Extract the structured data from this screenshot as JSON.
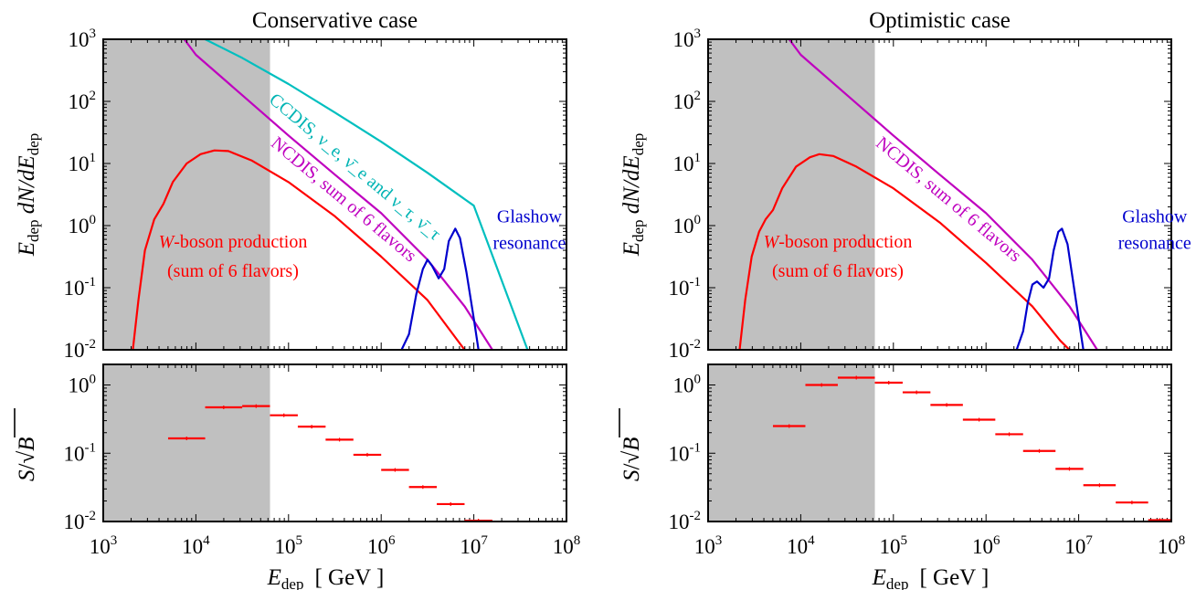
{
  "panels": [
    {
      "title": "Conservative case",
      "shade_max": 4.8,
      "top": {
        "ylabel_main": "E",
        "ylabel_sub1": "dep",
        "ylabel_mid": " dN/dE",
        "ylabel_sub2": "dep",
        "curves": [
          {
            "key": "ccdis",
            "color": "#00bfbf",
            "points": [
              [
                4.1,
                3.0
              ],
              [
                4.5,
                2.7
              ],
              [
                5,
                2.28
              ],
              [
                5.5,
                1.82
              ],
              [
                6,
                1.35
              ],
              [
                6.5,
                0.85
              ],
              [
                7,
                0.32
              ],
              [
                7.58,
                -2.0
              ]
            ]
          },
          {
            "key": "ncdis",
            "color": "#bf00bf",
            "points": [
              [
                3.8,
                3.15
              ],
              [
                4,
                2.75
              ],
              [
                4.5,
                2.1
              ],
              [
                5,
                1.45
              ],
              [
                5.5,
                0.82
              ],
              [
                6,
                0.2
              ],
              [
                6.5,
                -0.55
              ],
              [
                6.9,
                -1.3
              ],
              [
                7.2,
                -2.0
              ]
            ]
          },
          {
            "key": "wboson",
            "color": "#ff0000",
            "points": [
              [
                3.32,
                -2.0
              ],
              [
                3.38,
                -1.2
              ],
              [
                3.45,
                -0.4
              ],
              [
                3.55,
                0.1
              ],
              [
                3.65,
                0.35
              ],
              [
                3.75,
                0.7
              ],
              [
                3.9,
                1.0
              ],
              [
                4.05,
                1.15
              ],
              [
                4.2,
                1.21
              ],
              [
                4.35,
                1.2
              ],
              [
                4.6,
                1.05
              ],
              [
                5,
                0.7
              ],
              [
                5.5,
                0.15
              ],
              [
                6,
                -0.5
              ],
              [
                6.5,
                -1.2
              ],
              [
                6.8,
                -1.8
              ],
              [
                6.9,
                -2.0
              ]
            ]
          },
          {
            "key": "glashow",
            "color": "#0000cd",
            "points": [
              [
                6.22,
                -2.0
              ],
              [
                6.3,
                -1.75
              ],
              [
                6.38,
                -1.1
              ],
              [
                6.45,
                -0.7
              ],
              [
                6.5,
                -0.55
              ],
              [
                6.55,
                -0.65
              ],
              [
                6.62,
                -0.85
              ],
              [
                6.68,
                -0.7
              ],
              [
                6.73,
                -0.25
              ],
              [
                6.8,
                -0.05
              ],
              [
                6.85,
                -0.2
              ],
              [
                6.92,
                -0.75
              ],
              [
                7,
                -1.5
              ],
              [
                7.05,
                -2.0
              ]
            ]
          }
        ],
        "labels": {
          "ccdis": "CCDIS, ν_e, ν̄_e and ν_τ, ν̄_τ",
          "ncdis": "NCDIS, sum of 6 flavors",
          "w_line1_italic": "W",
          "w_line1_rest": "-boson production",
          "w_line2": "(sum of 6 flavors)",
          "glashow_line1": "Glashow",
          "glashow_line2": "resonance"
        }
      },
      "bottom": {
        "ylabel_s": "S",
        "ylabel_slash": "/",
        "ylabel_b": "B",
        "bins": [
          {
            "x": [
              3.7,
              4.1
            ],
            "y": 0.165
          },
          {
            "x": [
              4.1,
              4.5
            ],
            "y": 0.47
          },
          {
            "x": [
              4.5,
              4.8
            ],
            "y": 0.49
          },
          {
            "x": [
              4.8,
              5.1
            ],
            "y": 0.36
          },
          {
            "x": [
              5.1,
              5.4
            ],
            "y": 0.245
          },
          {
            "x": [
              5.4,
              5.7
            ],
            "y": 0.158
          },
          {
            "x": [
              5.7,
              6.0
            ],
            "y": 0.095
          },
          {
            "x": [
              6.0,
              6.3
            ],
            "y": 0.057
          },
          {
            "x": [
              6.3,
              6.6
            ],
            "y": 0.032
          },
          {
            "x": [
              6.6,
              6.9
            ],
            "y": 0.018
          },
          {
            "x": [
              6.9,
              7.2
            ],
            "y": 0.0103
          }
        ]
      },
      "xlabel_main": "E",
      "xlabel_sub": "dep",
      "xlabel_unit": "[ GeV ]"
    },
    {
      "title": "Optimistic case",
      "shade_max": 4.8,
      "top": {
        "ylabel_main": "E",
        "ylabel_sub1": "dep",
        "ylabel_mid": " dN/dE",
        "ylabel_sub2": "dep",
        "curves": [
          {
            "key": "ncdis",
            "color": "#bf00bf",
            "points": [
              [
                3.8,
                3.15
              ],
              [
                4,
                2.75
              ],
              [
                4.5,
                2.1
              ],
              [
                5,
                1.45
              ],
              [
                5.5,
                0.82
              ],
              [
                6,
                0.2
              ],
              [
                6.5,
                -0.55
              ],
              [
                6.9,
                -1.3
              ],
              [
                7.2,
                -2.0
              ]
            ]
          },
          {
            "key": "wboson",
            "color": "#ff0000",
            "points": [
              [
                3.34,
                -2.0
              ],
              [
                3.4,
                -1.2
              ],
              [
                3.47,
                -0.5
              ],
              [
                3.55,
                -0.1
              ],
              [
                3.62,
                0.1
              ],
              [
                3.7,
                0.25
              ],
              [
                3.8,
                0.6
              ],
              [
                3.95,
                0.95
              ],
              [
                4.1,
                1.1
              ],
              [
                4.2,
                1.15
              ],
              [
                4.35,
                1.12
              ],
              [
                4.6,
                0.95
              ],
              [
                5,
                0.6
              ],
              [
                5.5,
                0.05
              ],
              [
                6,
                -0.6
              ],
              [
                6.5,
                -1.3
              ],
              [
                6.8,
                -1.85
              ],
              [
                6.9,
                -2.0
              ]
            ]
          },
          {
            "key": "glashow",
            "color": "#0000cd",
            "points": [
              [
                6.33,
                -2.0
              ],
              [
                6.4,
                -1.7
              ],
              [
                6.45,
                -1.25
              ],
              [
                6.5,
                -0.95
              ],
              [
                6.55,
                -0.9
              ],
              [
                6.62,
                -1.0
              ],
              [
                6.68,
                -0.85
              ],
              [
                6.73,
                -0.4
              ],
              [
                6.78,
                -0.1
              ],
              [
                6.82,
                -0.05
              ],
              [
                6.88,
                -0.3
              ],
              [
                6.95,
                -1.0
              ],
              [
                7.02,
                -1.7
              ],
              [
                7.05,
                -2.0
              ]
            ]
          }
        ],
        "labels": {
          "ncdis": "NCDIS, sum of 6 flavors",
          "w_line1_italic": "W",
          "w_line1_rest": "-boson production",
          "w_line2": "(sum of 6 flavors)",
          "glashow_line1": "Glashow",
          "glashow_line2": "resonance"
        }
      },
      "bottom": {
        "ylabel_s": "S",
        "ylabel_slash": "/",
        "ylabel_b": "B",
        "bins": [
          {
            "x": [
              3.7,
              4.05
            ],
            "y": 0.25
          },
          {
            "x": [
              4.05,
              4.4
            ],
            "y": 1.0
          },
          {
            "x": [
              4.4,
              4.8
            ],
            "y": 1.28
          },
          {
            "x": [
              4.8,
              5.1
            ],
            "y": 1.08
          },
          {
            "x": [
              5.1,
              5.4
            ],
            "y": 0.78
          },
          {
            "x": [
              5.4,
              5.75
            ],
            "y": 0.51
          },
          {
            "x": [
              5.75,
              6.1
            ],
            "y": 0.31
          },
          {
            "x": [
              6.1,
              6.4
            ],
            "y": 0.19
          },
          {
            "x": [
              6.4,
              6.75
            ],
            "y": 0.108
          },
          {
            "x": [
              6.75,
              7.05
            ],
            "y": 0.059
          },
          {
            "x": [
              7.05,
              7.4
            ],
            "y": 0.034
          },
          {
            "x": [
              7.4,
              7.75
            ],
            "y": 0.019
          },
          {
            "x": [
              7.75,
              8.0
            ],
            "y": 0.0105
          }
        ]
      },
      "xlabel_main": "E",
      "xlabel_sub": "dep",
      "xlabel_unit": "[ GeV ]"
    }
  ],
  "chart_data": [
    {
      "type": "line",
      "title": "Conservative case",
      "xlabel": "E_dep [ GeV ]",
      "ylabel": "E_dep dN/dE_dep",
      "xscale": "log",
      "yscale": "log",
      "xlim": [
        1000,
        100000000
      ],
      "ylim": [
        0.01,
        1000
      ],
      "x_ticks": [
        "10^3",
        "10^4",
        "10^5",
        "10^6",
        "10^7",
        "10^8"
      ],
      "y_ticks": [
        "10^-2",
        "10^-1",
        "10^0",
        "10^1",
        "10^2",
        "10^3"
      ],
      "shaded_region": [
        1000,
        63000
      ],
      "series": [
        {
          "name": "CCDIS, ν_e, ν̄_e and ν_τ, ν̄_τ",
          "x": [
            12600,
            31600,
            100000,
            316000,
            1000000,
            3160000,
            10000000,
            38000000
          ],
          "y": [
            1000,
            500,
            190,
            66,
            22,
            7.1,
            2.1,
            0.01
          ]
        },
        {
          "name": "NCDIS, sum of 6 flavors",
          "x": [
            6300,
            10000,
            31600,
            100000,
            316000,
            1000000,
            3160000,
            7900000,
            15800000
          ],
          "y": [
            1400,
            560,
            126,
            28,
            6.6,
            1.6,
            0.28,
            0.05,
            0.01
          ]
        },
        {
          "name": "W-boson production (sum of 6 flavors)",
          "x": [
            2100,
            2800,
            3500,
            5600,
            8000,
            11200,
            15800,
            22400,
            40000,
            100000,
            316000,
            1000000,
            3160000,
            7900000
          ],
          "y": [
            0.01,
            0.4,
            1.26,
            2.2,
            5,
            10,
            16,
            16,
            11,
            5,
            1.4,
            0.32,
            0.063,
            0.01
          ]
        },
        {
          "name": "Glashow resonance",
          "x": [
            1660000,
            2400000,
            3160000,
            3980000,
            4790000,
            5370000,
            6300000,
            7080000,
            8300000,
            11200000
          ],
          "y": [
            0.01,
            0.08,
            0.28,
            0.14,
            0.2,
            0.56,
            0.9,
            0.6,
            0.18,
            0.01
          ]
        }
      ]
    },
    {
      "type": "line",
      "title": "Conservative case",
      "xlabel": "E_dep [ GeV ]",
      "ylabel": "S/√B",
      "xscale": "log",
      "yscale": "log",
      "xlim": [
        1000,
        100000000
      ],
      "ylim": [
        0.01,
        2
      ],
      "y_ticks": [
        "10^-2",
        "10^-1",
        "10^0"
      ],
      "series": [
        {
          "name": "S/√B",
          "x": [
            7900,
            19900,
            44700,
            89000,
            178000,
            355000,
            708000,
            1410000,
            2820000,
            5620000,
            11200000
          ],
          "y": [
            0.165,
            0.47,
            0.49,
            0.36,
            0.245,
            0.158,
            0.095,
            0.057,
            0.032,
            0.018,
            0.0103
          ]
        }
      ]
    },
    {
      "type": "line",
      "title": "Optimistic case",
      "xlabel": "E_dep [ GeV ]",
      "ylabel": "E_dep dN/dE_dep",
      "xscale": "log",
      "yscale": "log",
      "xlim": [
        1000,
        100000000
      ],
      "ylim": [
        0.01,
        1000
      ],
      "x_ticks": [
        "10^3",
        "10^4",
        "10^5",
        "10^6",
        "10^7",
        "10^8"
      ],
      "y_ticks": [
        "10^-2",
        "10^-1",
        "10^0",
        "10^1",
        "10^2",
        "10^3"
      ],
      "shaded_region": [
        1000,
        63000
      ],
      "series": [
        {
          "name": "NCDIS, sum of 6 flavors",
          "x": [
            6300,
            10000,
            31600,
            100000,
            316000,
            1000000,
            3160000,
            7900000,
            15800000
          ],
          "y": [
            1400,
            560,
            126,
            28,
            6.6,
            1.6,
            0.28,
            0.05,
            0.01
          ]
        },
        {
          "name": "W-boson production (sum of 6 flavors)",
          "x": [
            2200,
            2950,
            3500,
            4200,
            5000,
            6300,
            8900,
            12600,
            15800,
            22400,
            40000,
            100000,
            316000,
            1000000,
            3160000,
            7900000
          ],
          "y": [
            0.01,
            0.32,
            0.8,
            1.26,
            1.8,
            4,
            8.9,
            12.6,
            14,
            13,
            9,
            4,
            1.1,
            0.25,
            0.05,
            0.01
          ]
        },
        {
          "name": "Glashow resonance",
          "x": [
            2140000,
            2820000,
            3160000,
            3550000,
            4170000,
            4790000,
            5370000,
            6000000,
            6600000,
            7600000,
            11200000
          ],
          "y": [
            0.01,
            0.056,
            0.11,
            0.126,
            0.1,
            0.14,
            0.4,
            0.8,
            0.9,
            0.5,
            0.01
          ]
        }
      ]
    },
    {
      "type": "line",
      "title": "Optimistic case",
      "xlabel": "E_dep [ GeV ]",
      "ylabel": "S/√B",
      "xscale": "log",
      "yscale": "log",
      "xlim": [
        1000,
        100000000
      ],
      "ylim": [
        0.01,
        2
      ],
      "y_ticks": [
        "10^-2",
        "10^-1",
        "10^0"
      ],
      "series": [
        {
          "name": "S/√B",
          "x": [
            7500,
            17800,
            39800,
            89000,
            178000,
            398000,
            891000,
            1780000,
            3550000,
            7940000,
            17800000,
            39800000,
            75000000
          ],
          "y": [
            0.25,
            1.0,
            1.28,
            1.08,
            0.78,
            0.51,
            0.31,
            0.19,
            0.108,
            0.059,
            0.034,
            0.019,
            0.0105
          ]
        }
      ]
    }
  ]
}
